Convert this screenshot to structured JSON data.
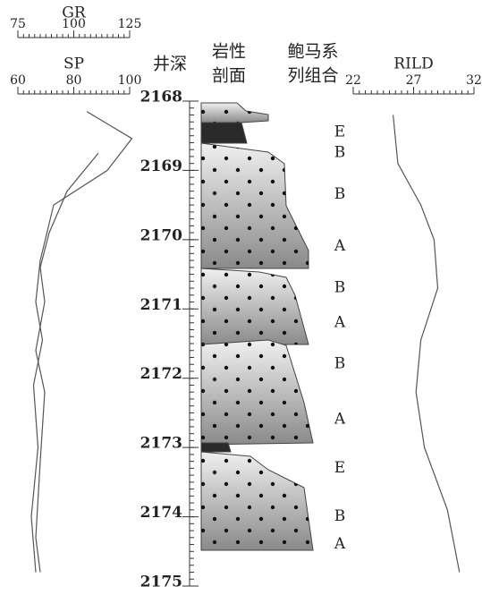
{
  "tracks": {
    "gr": {
      "name": "GR",
      "xlim": [
        75,
        125
      ],
      "xticks": [
        75,
        100,
        125
      ],
      "depth": [
        2168.15,
        2168.54,
        2169.0,
        2169.5,
        2170.3,
        2170.9,
        2171.45,
        2172.1,
        2173.0,
        2174.0,
        2174.8
      ],
      "values": [
        105.8,
        126,
        115,
        91,
        85,
        83,
        86,
        82,
        84,
        81,
        83
      ]
    },
    "sp": {
      "name": "SP",
      "xlim": [
        60,
        100
      ],
      "xticks": [
        60,
        80,
        100
      ],
      "depth": [
        2168.75,
        2169.3,
        2169.9,
        2170.4,
        2170.9,
        2171.6,
        2172.2,
        2173.2,
        2174.3,
        2174.8
      ],
      "values": [
        88.8,
        77.6,
        71.2,
        68,
        69.6,
        66.4,
        69.6,
        68,
        66.4,
        68
      ]
    },
    "depth": {
      "title": "井深",
      "lim": [
        2168,
        2175
      ],
      "ticks": [
        2168,
        2169,
        2170,
        2171,
        2172,
        2173,
        2174,
        2175
      ]
    },
    "lithology": {
      "title": [
        "岩性",
        "剖面"
      ]
    },
    "bouma": {
      "title": [
        "鲍马系",
        "列组合"
      ],
      "labels": [
        {
          "depth": 2168.45,
          "label": "E"
        },
        {
          "depth": 2168.75,
          "label": "B"
        },
        {
          "depth": 2169.35,
          "label": "B"
        },
        {
          "depth": 2170.1,
          "label": "A"
        },
        {
          "depth": 2170.7,
          "label": "B"
        },
        {
          "depth": 2171.2,
          "label": "A"
        },
        {
          "depth": 2171.8,
          "label": "B"
        },
        {
          "depth": 2172.6,
          "label": "A"
        },
        {
          "depth": 2173.3,
          "label": "E"
        },
        {
          "depth": 2174.0,
          "label": "B"
        },
        {
          "depth": 2174.4,
          "label": "A"
        }
      ]
    },
    "rild": {
      "name": "RILD",
      "xlim": [
        22,
        32
      ],
      "xticks": [
        22,
        27,
        32
      ],
      "depth": [
        2168.2,
        2168.9,
        2169.5,
        2170.0,
        2170.7,
        2171.45,
        2172.2,
        2173.0,
        2173.9,
        2174.8
      ],
      "values": [
        25.3,
        25.7,
        27.6,
        28.7,
        29.0,
        27.6,
        27.2,
        27.9,
        29.8,
        30.8
      ]
    }
  }
}
